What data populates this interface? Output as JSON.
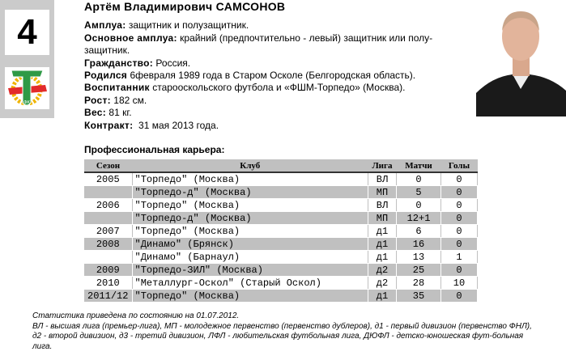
{
  "player": {
    "number": "4",
    "name": "Артём Владимирович САМСОНОВ",
    "fields": [
      {
        "label": "Амплуа:",
        "value": " защитник и полузащитник."
      },
      {
        "label": "Основное амплуа:",
        "value": " крайний (предпочтительно - левый) защитник или полу-защитник."
      },
      {
        "label": "Гражданство:",
        "value": " Россия."
      },
      {
        "label": "Родился",
        "value": " 6февраля 1989 года в Старом Осколе (Белгородская область)."
      },
      {
        "label": "Воспитанник",
        "value": " старооскольского футбола и «ФШМ-Торпедо» (Москва)."
      },
      {
        "label": "Рост:",
        "value": " 182 см."
      },
      {
        "label": "Вес:",
        "value": " 81 кг."
      },
      {
        "label": "Контракт:",
        "value": "  31 мая 2013 года."
      }
    ]
  },
  "logo": {
    "text": "ФК",
    "icon": "torpedo-club-logo",
    "colors": {
      "green": "#2e9a46",
      "red": "#e22b2b",
      "gear": "#f0b400"
    }
  },
  "career": {
    "title": "Профессиональная карьера:",
    "headers": [
      "Сезон",
      "Клуб",
      "Лига",
      "Матчи",
      "Голы"
    ],
    "rows": [
      [
        "2005",
        "\"Торпедо\" (Москва)",
        "ВЛ",
        "0",
        "0"
      ],
      [
        "",
        "\"Торпедо-д\" (Москва)",
        "МП",
        "5",
        "0"
      ],
      [
        "2006",
        "\"Торпедо\" (Москва)",
        "ВЛ",
        "0",
        "0"
      ],
      [
        "",
        "\"Торпедо-д\" (Москва)",
        "МП",
        "12+1",
        "0"
      ],
      [
        "2007",
        "\"Торпедо\" (Москва)",
        "д1",
        "6",
        "0"
      ],
      [
        "2008",
        "\"Динамо\" (Брянск)",
        "д1",
        "16",
        "0"
      ],
      [
        "",
        "\"Динамо\" (Барнаул)",
        "д1",
        "13",
        "1"
      ],
      [
        "2009",
        "\"Торпедо-ЗИЛ\" (Москва)",
        "д2",
        "25",
        "0"
      ],
      [
        "2010",
        "\"Металлург-Оскол\" (Старый Оскол)",
        "д2",
        "28",
        "10"
      ],
      [
        "2011/12",
        "\"Торпедо\" (Москва)",
        "д1",
        "35",
        "0"
      ]
    ]
  },
  "notes": [
    "Статистика приведена по состоянию на 01.07.2012.",
    "ВЛ - высшая лига (премьер-лига), МП - молодежное первенство (первенство дублеров), д1 - первый дивизион (первенство ФНЛ), д2 - второй дивизион, д3 - третий дивизион, ЛФЛ - любительская футбольная лига, ДЮФЛ - детско-юношеская фут-больная лига."
  ]
}
